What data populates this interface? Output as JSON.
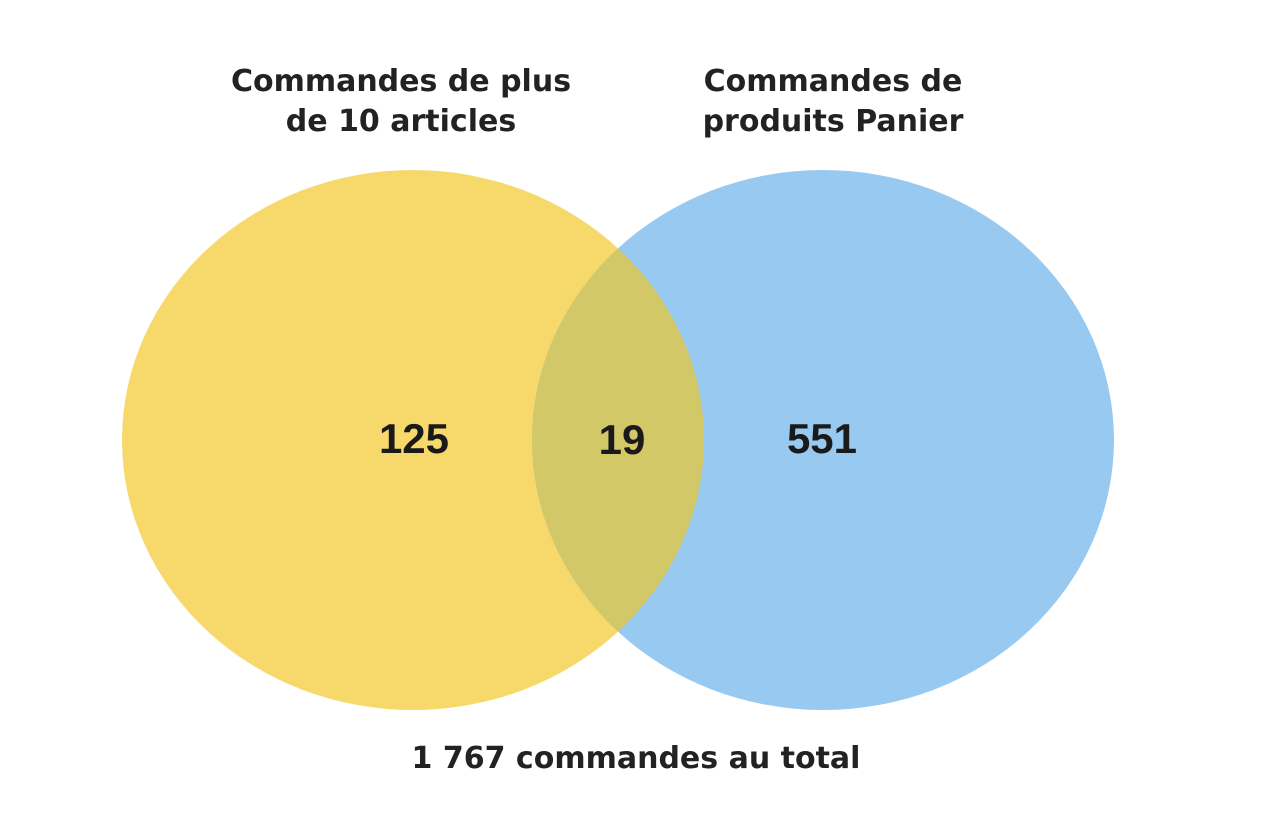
{
  "sets": {
    "left": {
      "label_line1": "Commandes de plus",
      "label_line2": "de 10 articles",
      "color": "#F7D96B"
    },
    "right": {
      "label_line1": "Commandes de",
      "label_line2": "produits Panier",
      "color": "#98C9F1"
    },
    "overlap_color": "#D2C868"
  },
  "counts": {
    "left_only": "125",
    "both": "19",
    "right_only": "551"
  },
  "total": "1 767 commandes au total"
}
